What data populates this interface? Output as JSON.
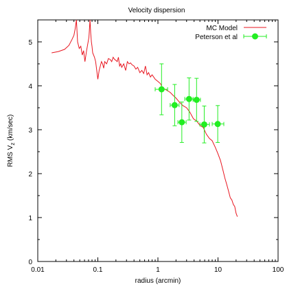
{
  "chart_data": {
    "type": "line",
    "title": "Velocity dispersion",
    "xlabel": "radius (arcmin)",
    "ylabel_main": "RMS V",
    "ylabel_sub": "z",
    "ylabel_unit": " (km/sec)",
    "xscale": "log",
    "xlim": [
      0.01,
      100
    ],
    "ylim": [
      0,
      5.5
    ],
    "x_ticks": [
      0.01,
      0.1,
      1,
      10,
      100
    ],
    "x_tick_labels": [
      "0.01",
      "0.1",
      "1",
      "10",
      "100"
    ],
    "y_ticks": [
      0,
      1,
      2,
      3,
      4,
      5
    ],
    "y_tick_labels": [
      "0",
      "1",
      "2",
      "3",
      "4",
      "5"
    ],
    "grid": false,
    "legend_position": "top-right",
    "series": [
      {
        "name": "MC Model",
        "kind": "line",
        "color": "#e8141e",
        "x": [
          0.017,
          0.022,
          0.028,
          0.033,
          0.037,
          0.04,
          0.042,
          0.044,
          0.046,
          0.049,
          0.052,
          0.055,
          0.058,
          0.061,
          0.065,
          0.068,
          0.071,
          0.074,
          0.076,
          0.078,
          0.08,
          0.082,
          0.085,
          0.088,
          0.092,
          0.096,
          0.1,
          0.105,
          0.11,
          0.115,
          0.12,
          0.125,
          0.13,
          0.14,
          0.15,
          0.16,
          0.17,
          0.18,
          0.19,
          0.2,
          0.21,
          0.22,
          0.23,
          0.24,
          0.25,
          0.27,
          0.29,
          0.31,
          0.33,
          0.35,
          0.37,
          0.4,
          0.43,
          0.46,
          0.5,
          0.54,
          0.58,
          0.62,
          0.66,
          0.7,
          0.75,
          0.8,
          0.85,
          0.9,
          1.0,
          1.1,
          1.2,
          1.4,
          1.6,
          1.8,
          2.0,
          2.3,
          2.6,
          3.0,
          3.4,
          3.9,
          4.4,
          5.0,
          5.7,
          6.4,
          7.2,
          8.0,
          9.0,
          10.0,
          11.0,
          12.0,
          13.0,
          14.0,
          15.0,
          16.0,
          17.0,
          18.0,
          19.0,
          20.0,
          21.0
        ],
        "y": [
          4.75,
          4.78,
          4.83,
          4.92,
          5.05,
          5.15,
          5.3,
          5.5,
          5.0,
          4.85,
          4.9,
          4.7,
          4.8,
          4.55,
          4.8,
          4.95,
          5.1,
          5.5,
          5.2,
          5.0,
          4.9,
          4.75,
          4.7,
          4.65,
          4.55,
          4.35,
          4.15,
          4.35,
          4.45,
          4.55,
          4.5,
          4.4,
          4.55,
          4.5,
          4.62,
          4.6,
          4.55,
          4.65,
          4.6,
          4.58,
          4.55,
          4.65,
          4.45,
          4.5,
          4.42,
          4.5,
          4.35,
          4.55,
          4.5,
          4.52,
          4.48,
          4.45,
          4.38,
          4.42,
          4.3,
          4.35,
          4.28,
          4.45,
          4.25,
          4.3,
          4.2,
          4.25,
          4.2,
          4.15,
          4.1,
          4.05,
          3.95,
          3.9,
          3.85,
          3.78,
          3.72,
          3.62,
          3.55,
          3.5,
          3.4,
          3.25,
          3.2,
          3.1,
          3.05,
          2.9,
          2.8,
          2.75,
          2.6,
          2.45,
          2.3,
          2.1,
          1.9,
          1.75,
          1.6,
          1.45,
          1.4,
          1.3,
          1.25,
          1.1,
          1.02
        ]
      },
      {
        "name": "Peterson et al",
        "kind": "points_with_errorbars",
        "color": "#22ee22",
        "x": [
          1.15,
          1.9,
          2.5,
          3.3,
          4.4,
          5.9,
          9.9
        ],
        "y": [
          3.92,
          3.56,
          3.17,
          3.7,
          3.68,
          3.12,
          3.13
        ],
        "xerr_low": [
          0.25,
          0.3,
          0.35,
          0.5,
          0.55,
          0.9,
          1.9
        ],
        "xerr_high": [
          0.3,
          0.35,
          0.45,
          0.55,
          0.7,
          1.3,
          2.6
        ],
        "yerr": [
          0.58,
          0.47,
          0.46,
          0.48,
          0.49,
          0.42,
          0.42
        ]
      }
    ]
  }
}
